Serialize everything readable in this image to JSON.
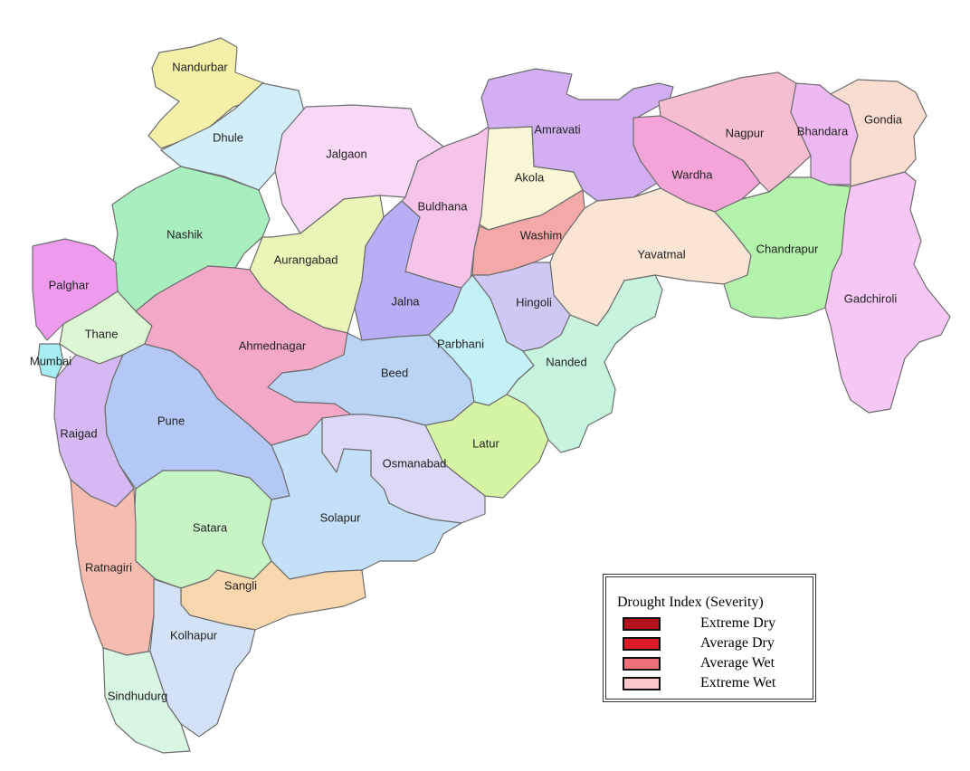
{
  "districts": [
    {
      "name": "Nandurbar",
      "color": "#f5f0a8"
    },
    {
      "name": "Dhule",
      "color": "#d2eef8"
    },
    {
      "name": "Jalgaon",
      "color": "#f7d8f5"
    },
    {
      "name": "Nashik",
      "color": "#a8efc0"
    },
    {
      "name": "Palghar",
      "color": "#ee9bee"
    },
    {
      "name": "Thane",
      "color": "#dcf7d4"
    },
    {
      "name": "Mumbai",
      "color": "#a7eef4"
    },
    {
      "name": "Raigad",
      "color": "#d6b8f2"
    },
    {
      "name": "Pune",
      "color": "#b3c8f5"
    },
    {
      "name": "Aurangabad",
      "color": "#ecf5b8"
    },
    {
      "name": "Ahmednagar",
      "color": "#f3a8c8"
    },
    {
      "name": "Beed",
      "color": "#b9d4f5"
    },
    {
      "name": "Jalna",
      "color": "#b7aef5"
    },
    {
      "name": "Buldhana",
      "color": "#f6c4e8"
    },
    {
      "name": "Akola",
      "color": "#f8f6d4"
    },
    {
      "name": "Washim",
      "color": "#f4a8a8"
    },
    {
      "name": "Amravati",
      "color": "#d2aef2"
    },
    {
      "name": "Nagpur",
      "color": "#f6bed2"
    },
    {
      "name": "Wardha",
      "color": "#f5a4d8"
    },
    {
      "name": "Bhandara",
      "color": "#eeb8f2"
    },
    {
      "name": "Gondia",
      "color": "#fbdcd0"
    },
    {
      "name": "Yavatmal",
      "color": "#fae4d4"
    },
    {
      "name": "Chandrapur",
      "color": "#b4f3ac"
    },
    {
      "name": "Gadchiroli",
      "color": "#f6c6f4"
    },
    {
      "name": "Hingoli",
      "color": "#d0c8f4"
    },
    {
      "name": "Parbhani",
      "color": "#c4f0f8"
    },
    {
      "name": "Nanded",
      "color": "#c6f4dc"
    },
    {
      "name": "Latur",
      "color": "#d6f5a4"
    },
    {
      "name": "Osmanabad",
      "color": "#dcd8f8"
    },
    {
      "name": "Solapur",
      "color": "#c4e0f8"
    },
    {
      "name": "Satara",
      "color": "#c6f4c4"
    },
    {
      "name": "Sangli",
      "color": "#f8d6ae"
    },
    {
      "name": "Ratnagiri",
      "color": "#f6bcb0"
    },
    {
      "name": "Kolhapur",
      "color": "#d4e2f8"
    },
    {
      "name": "Sindhudurg",
      "color": "#d8f6e2"
    }
  ],
  "legend": {
    "title": "Drought Index (Severity)",
    "items": [
      {
        "label": "Extreme Dry",
        "color": "#b3121d"
      },
      {
        "label": "Average Dry",
        "color": "#dc1c24"
      },
      {
        "label": "Average Wet",
        "color": "#f07078"
      },
      {
        "label": "Extreme Wet",
        "color": "#fbc8cc"
      }
    ]
  }
}
